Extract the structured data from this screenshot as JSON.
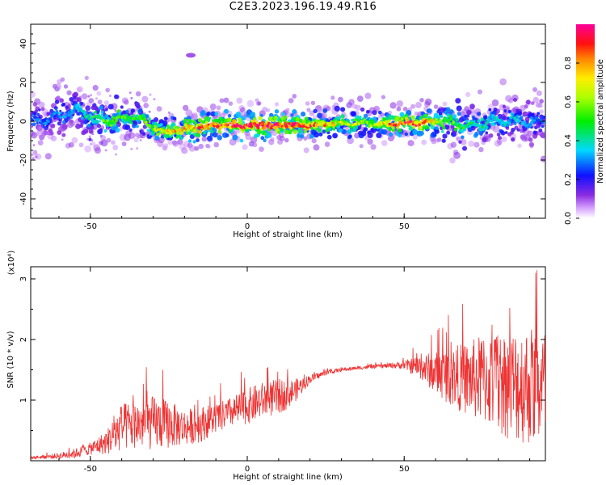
{
  "title": "C2E3.2023.196.19.49.R16",
  "chart_data": [
    {
      "type": "heatmap",
      "xlabel": "Height of straight line (km)",
      "ylabel": "Frequency (Hz)",
      "xlim": [
        -69,
        95
      ],
      "ylim": [
        -50,
        50
      ],
      "xticks": [
        -50,
        0,
        50
      ],
      "yticks": [
        40,
        20,
        0,
        -20,
        -40
      ],
      "colorbar": {
        "label": "Normalized spectral amplitude",
        "range": [
          0.0,
          1.0
        ],
        "ticks": [
          0.0,
          0.2,
          0.4,
          0.6,
          0.8
        ]
      },
      "ridge": {
        "x": [
          -65,
          -55,
          -45,
          -35,
          -28,
          -20,
          -10,
          0,
          10,
          20,
          30,
          40,
          48,
          55,
          62,
          70,
          80,
          90,
          94
        ],
        "freq_center": [
          0,
          6,
          0,
          2,
          -5,
          -4,
          -2,
          -2,
          -2,
          -2,
          -1,
          -1,
          -1,
          -1,
          0,
          -2,
          0,
          0,
          0
        ],
        "peak_amplitude": [
          0.3,
          0.35,
          0.6,
          0.55,
          0.7,
          0.85,
          0.9,
          1.0,
          1.0,
          0.9,
          0.7,
          0.6,
          0.95,
          0.9,
          0.6,
          0.5,
          0.4,
          0.35,
          0.3
        ]
      }
    },
    {
      "type": "line",
      "xlabel": "Height of straight line (km)",
      "ylabel": "SNR (10 * v/v)",
      "yscale_label": "(x10⁴)",
      "xlim": [
        -69,
        95
      ],
      "ylim": [
        0,
        3.2
      ],
      "xticks": [
        -50,
        0,
        50
      ],
      "yticks": [
        1,
        2,
        3
      ],
      "series": [
        {
          "color": "#ee3333",
          "x": [
            -69,
            -60,
            -55,
            -50,
            -45,
            -40,
            -35,
            -30,
            -25,
            -20,
            -15,
            -10,
            -5,
            0,
            5,
            10,
            15,
            20,
            25,
            30,
            35,
            40,
            45,
            50,
            55,
            60,
            65,
            70,
            75,
            80,
            85,
            90,
            95
          ],
          "mean": [
            0.05,
            0.08,
            0.12,
            0.2,
            0.3,
            0.55,
            0.6,
            0.62,
            0.6,
            0.55,
            0.6,
            0.7,
            0.8,
            0.9,
            1.0,
            1.05,
            1.15,
            1.35,
            1.45,
            1.5,
            1.53,
            1.55,
            1.57,
            1.58,
            1.55,
            1.45,
            1.4,
            1.35,
            1.35,
            1.3,
            1.25,
            1.25,
            1.2
          ],
          "spread": [
            0.02,
            0.05,
            0.08,
            0.1,
            0.2,
            0.4,
            0.4,
            0.45,
            0.4,
            0.3,
            0.3,
            0.25,
            0.25,
            0.3,
            0.3,
            0.3,
            0.2,
            0.07,
            0.04,
            0.03,
            0.03,
            0.03,
            0.04,
            0.07,
            0.2,
            0.35,
            0.5,
            0.6,
            0.75,
            0.85,
            0.95,
            1.0,
            1.0
          ]
        }
      ]
    }
  ]
}
